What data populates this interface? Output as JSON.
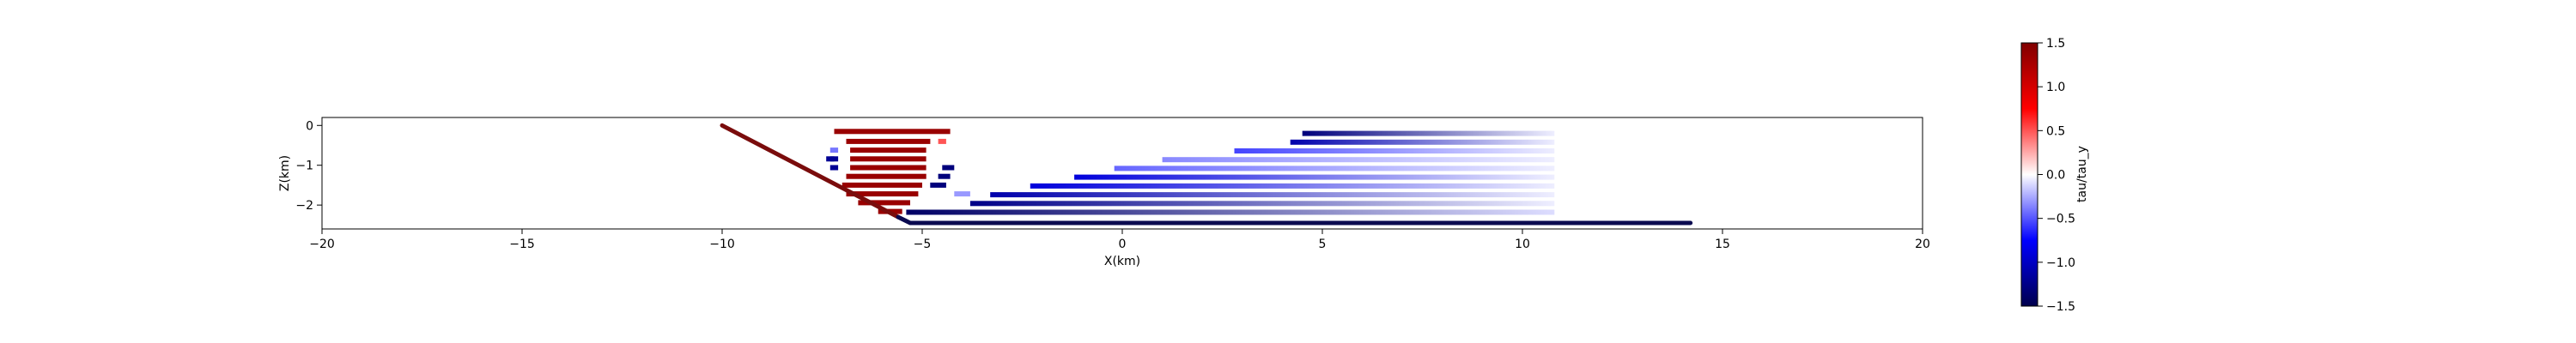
{
  "chart_data": {
    "type": "scatter",
    "title": "",
    "xlabel": "X(km)",
    "ylabel": "Z(km)",
    "xlim": [
      -20,
      20
    ],
    "ylim": [
      -2.6,
      0.2
    ],
    "xticks": [
      -20,
      -15,
      -10,
      -5,
      0,
      5,
      10,
      15,
      20
    ],
    "yticks": [
      0,
      -1,
      -2
    ],
    "xtick_labels": [
      "−20",
      "−15",
      "−10",
      "−5",
      "0",
      "5",
      "10",
      "15",
      "20"
    ],
    "ytick_labels": [
      "0",
      "−1",
      "−2"
    ],
    "grid": false,
    "fault_trace": {
      "points": [
        [
          -10.0,
          0.0
        ],
        [
          -5.6,
          -2.3
        ],
        [
          -5.3,
          -2.45
        ],
        [
          14.2,
          -2.45
        ]
      ],
      "color": "#7a0c0c",
      "stroke_color": "#0a0a50"
    },
    "colorbar": {
      "label": "tau/tau_y",
      "vmin": -1.5,
      "vmax": 1.5,
      "ticks": [
        1.5,
        1.0,
        0.5,
        0.0,
        -0.5,
        -1.0,
        -1.5
      ],
      "tick_labels": [
        "1.5",
        "1.0",
        "0.5",
        "0.0",
        "−0.5",
        "−1.0",
        "−1.5"
      ],
      "colormap": "seismic"
    },
    "series": [
      {
        "kind": "stress-band",
        "z": -0.15,
        "x": [
          -7.2,
          -4.3
        ],
        "tau_start": 1.35,
        "tau_end": 1.35
      },
      {
        "kind": "stress-band",
        "z": -0.4,
        "x": [
          -6.9,
          -4.8
        ],
        "tau_start": 1.35,
        "tau_end": 1.35
      },
      {
        "kind": "stress-band",
        "z": -0.62,
        "x": [
          -6.8,
          -4.9
        ],
        "tau_start": 1.35,
        "tau_end": 1.35
      },
      {
        "kind": "stress-band",
        "z": -0.84,
        "x": [
          -6.8,
          -4.9
        ],
        "tau_start": 1.35,
        "tau_end": 1.35
      },
      {
        "kind": "stress-band",
        "z": -1.06,
        "x": [
          -6.8,
          -4.9
        ],
        "tau_start": 1.35,
        "tau_end": 1.35
      },
      {
        "kind": "stress-band",
        "z": -1.28,
        "x": [
          -6.9,
          -4.9
        ],
        "tau_start": 1.35,
        "tau_end": 1.35
      },
      {
        "kind": "stress-band",
        "z": -1.5,
        "x": [
          -7.0,
          -5.0
        ],
        "tau_start": 1.35,
        "tau_end": 1.35
      },
      {
        "kind": "stress-band",
        "z": -1.72,
        "x": [
          -6.9,
          -5.1
        ],
        "tau_start": 1.35,
        "tau_end": 1.35
      },
      {
        "kind": "stress-band",
        "z": -1.94,
        "x": [
          -6.6,
          -5.3
        ],
        "tau_start": 1.35,
        "tau_end": 1.35
      },
      {
        "kind": "stress-band",
        "z": -2.16,
        "x": [
          -6.1,
          -5.5
        ],
        "tau_start": 1.35,
        "tau_end": 1.35
      },
      {
        "kind": "stress-band",
        "z": -0.4,
        "x": [
          -4.6,
          -4.4
        ],
        "tau_start": 0.5,
        "tau_end": 0.5
      },
      {
        "kind": "stress-band",
        "z": -0.84,
        "x": [
          -7.4,
          -7.2
        ],
        "tau_start": -1.2,
        "tau_end": -1.2
      },
      {
        "kind": "stress-band",
        "z": -1.06,
        "x": [
          -4.5,
          -4.2
        ],
        "tau_start": -1.3,
        "tau_end": -1.3
      },
      {
        "kind": "stress-band",
        "z": -1.28,
        "x": [
          -4.6,
          -4.3
        ],
        "tau_start": -1.3,
        "tau_end": -1.3
      },
      {
        "kind": "stress-band",
        "z": -1.5,
        "x": [
          -4.8,
          -4.4
        ],
        "tau_start": -1.3,
        "tau_end": -1.3
      },
      {
        "kind": "stress-band",
        "z": -1.72,
        "x": [
          -4.2,
          -3.8
        ],
        "tau_start": -0.3,
        "tau_end": -0.3
      },
      {
        "kind": "stress-band",
        "z": -0.84,
        "x": [
          -7.3,
          -7.1
        ],
        "tau_start": -1.2,
        "tau_end": -1.2
      },
      {
        "kind": "stress-band",
        "z": -1.06,
        "x": [
          -7.3,
          -7.1
        ],
        "tau_start": -1.2,
        "tau_end": -1.2
      },
      {
        "kind": "stress-band",
        "z": -0.62,
        "x": [
          -7.3,
          -7.1
        ],
        "tau_start": -0.4,
        "tau_end": -0.4
      },
      {
        "kind": "stress-band",
        "z": -0.2,
        "x": [
          4.5,
          10.8
        ],
        "tau_start": -1.3,
        "tau_end": -0.05
      },
      {
        "kind": "stress-band",
        "z": -0.42,
        "x": [
          4.2,
          10.8
        ],
        "tau_start": -1.1,
        "tau_end": -0.05
      },
      {
        "kind": "stress-band",
        "z": -0.64,
        "x": [
          2.8,
          10.8
        ],
        "tau_start": -0.55,
        "tau_end": -0.05
      },
      {
        "kind": "stress-band",
        "z": -0.86,
        "x": [
          1.0,
          10.8
        ],
        "tau_start": -0.35,
        "tau_end": -0.05
      },
      {
        "kind": "stress-band",
        "z": -1.08,
        "x": [
          -0.2,
          10.8
        ],
        "tau_start": -0.45,
        "tau_end": -0.05
      },
      {
        "kind": "stress-band",
        "z": -1.3,
        "x": [
          -1.2,
          10.8
        ],
        "tau_start": -0.9,
        "tau_end": -0.05
      },
      {
        "kind": "stress-band",
        "z": -1.52,
        "x": [
          -2.3,
          10.8
        ],
        "tau_start": -0.9,
        "tau_end": -0.05
      },
      {
        "kind": "stress-band",
        "z": -1.74,
        "x": [
          -3.3,
          10.8
        ],
        "tau_start": -1.1,
        "tau_end": -0.05
      },
      {
        "kind": "stress-band",
        "z": -1.96,
        "x": [
          -3.8,
          10.8
        ],
        "tau_start": -1.25,
        "tau_end": -0.05
      },
      {
        "kind": "stress-band",
        "z": -2.18,
        "x": [
          -5.4,
          10.8
        ],
        "tau_start": -1.4,
        "tau_end": -0.1
      }
    ]
  }
}
